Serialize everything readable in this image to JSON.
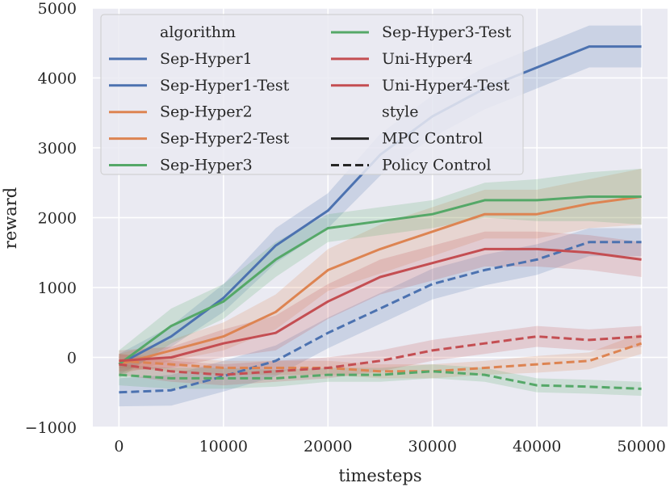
{
  "chart_data": {
    "type": "line",
    "title": "",
    "xlabel": "timesteps",
    "ylabel": "reward",
    "xlim": [
      -2500,
      52500
    ],
    "ylim": [
      -1000,
      5000
    ],
    "xticks": [
      0,
      10000,
      20000,
      30000,
      40000,
      50000
    ],
    "xtick_labels": [
      "0",
      "10000",
      "20000",
      "30000",
      "40000",
      "50000"
    ],
    "yticks": [
      -1000,
      0,
      1000,
      2000,
      3000,
      4000,
      5000
    ],
    "ytick_labels": [
      "−1000",
      "0",
      "1000",
      "2000",
      "3000",
      "4000",
      "5000"
    ],
    "grid": true,
    "legend_position": "top-left",
    "legend": {
      "hue_title": "algorithm",
      "style_title": "style",
      "hue_entries": [
        "Sep-Hyper1",
        "Sep-Hyper1-Test",
        "Sep-Hyper2",
        "Sep-Hyper2-Test",
        "Sep-Hyper3",
        "Sep-Hyper3-Test",
        "Uni-Hyper4",
        "Uni-Hyper4-Test"
      ],
      "hue_colors": [
        "#4c72b0",
        "#4c72b0",
        "#dd8452",
        "#dd8452",
        "#55a868",
        "#55a868",
        "#c44e52",
        "#c44e52"
      ],
      "style_entries": [
        "MPC Control",
        "Policy Control"
      ],
      "style_dashes": [
        "solid",
        "dashed"
      ]
    },
    "x": [
      0,
      5000,
      10000,
      15000,
      20000,
      25000,
      30000,
      35000,
      40000,
      45000,
      50000
    ],
    "series": [
      {
        "name": "Sep-Hyper1",
        "style": "MPC Control",
        "color": "#4c72b0",
        "values": [
          -100,
          300,
          850,
          1600,
          2100,
          2900,
          3450,
          3850,
          4150,
          4450,
          4450
        ],
        "band": [
          150,
          150,
          200,
          250,
          250,
          300,
          300,
          300,
          300,
          300,
          300
        ]
      },
      {
        "name": "Sep-Hyper1-Test",
        "style": "Policy Control",
        "color": "#4c72b0",
        "values": [
          -500,
          -470,
          -270,
          -50,
          350,
          700,
          1050,
          1250,
          1400,
          1650,
          1650
        ],
        "band": [
          200,
          220,
          220,
          220,
          220,
          220,
          220,
          220,
          220,
          200,
          200
        ]
      },
      {
        "name": "Sep-Hyper2",
        "style": "MPC Control",
        "color": "#dd8452",
        "values": [
          -100,
          100,
          300,
          650,
          1250,
          1550,
          1800,
          2050,
          2050,
          2200,
          2300
        ],
        "band": [
          150,
          150,
          200,
          250,
          300,
          350,
          350,
          350,
          350,
          350,
          400
        ]
      },
      {
        "name": "Sep-Hyper2-Test",
        "style": "Policy Control",
        "color": "#dd8452",
        "values": [
          -50,
          -100,
          -150,
          -150,
          -150,
          -200,
          -200,
          -150,
          -100,
          -50,
          200
        ],
        "band": [
          100,
          100,
          100,
          100,
          100,
          100,
          100,
          100,
          120,
          120,
          150
        ]
      },
      {
        "name": "Sep-Hyper3",
        "style": "MPC Control",
        "color": "#55a868",
        "values": [
          -100,
          450,
          800,
          1400,
          1850,
          1950,
          2050,
          2250,
          2250,
          2300,
          2300
        ],
        "band": [
          200,
          250,
          250,
          250,
          200,
          200,
          200,
          250,
          300,
          350,
          400
        ]
      },
      {
        "name": "Sep-Hyper3-Test",
        "style": "Policy Control",
        "color": "#55a868",
        "values": [
          -250,
          -300,
          -300,
          -300,
          -250,
          -250,
          -200,
          -250,
          -400,
          -420,
          -450
        ],
        "band": [
          150,
          150,
          150,
          120,
          100,
          100,
          100,
          100,
          100,
          100,
          100
        ]
      },
      {
        "name": "Uni-Hyper4",
        "style": "MPC Control",
        "color": "#c44e52",
        "values": [
          -50,
          0,
          200,
          350,
          800,
          1150,
          1350,
          1550,
          1550,
          1500,
          1400
        ],
        "band": [
          150,
          150,
          200,
          250,
          250,
          250,
          250,
          250,
          250,
          250,
          250
        ]
      },
      {
        "name": "Uni-Hyper4-Test",
        "style": "Policy Control",
        "color": "#c44e52",
        "values": [
          -100,
          -200,
          -250,
          -200,
          -150,
          -50,
          100,
          200,
          300,
          250,
          300
        ],
        "band": [
          150,
          150,
          150,
          150,
          150,
          150,
          150,
          150,
          150,
          150,
          150
        ]
      }
    ]
  }
}
